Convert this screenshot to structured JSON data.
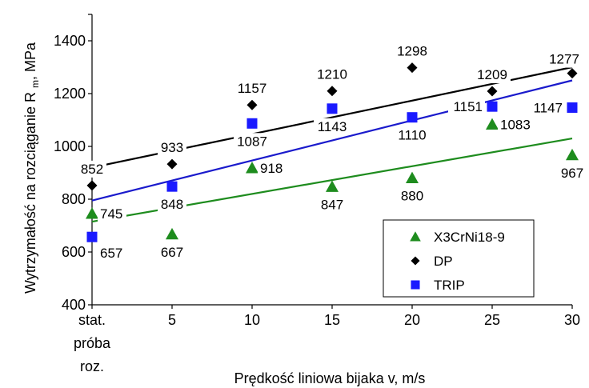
{
  "chart_data": {
    "type": "scatter",
    "xlabel": "Prędkość liniowa bijaka  v,  m/s",
    "ylabel_main": "Wytrzymałość na rozciąganie R",
    "ylabel_sub": "m",
    "ylabel_unit": ", MPa",
    "x_categories": [
      "stat. próba roz.",
      "5",
      "10",
      "15",
      "20",
      "25",
      "30"
    ],
    "x_tick_lines": [
      [
        "stat.",
        "próba",
        "roz."
      ],
      [
        "5"
      ],
      [
        "10"
      ],
      [
        "15"
      ],
      [
        "20"
      ],
      [
        "25"
      ],
      [
        "30"
      ]
    ],
    "ylim": [
      400,
      1500
    ],
    "yticks": [
      400,
      600,
      800,
      1000,
      1200,
      1400
    ],
    "grid": false,
    "legend_position": "bottom-right",
    "series": [
      {
        "name": "X3CrNi18-9",
        "marker": "triangle",
        "color": "#1e8c1e",
        "line_color": "#1e8c1e",
        "values": [
          745,
          667,
          918,
          847,
          880,
          1083,
          967
        ],
        "trend": [
          715,
          1030
        ]
      },
      {
        "name": "DP",
        "marker": "diamond",
        "color": "#000000",
        "line_color": "#000000",
        "values": [
          852,
          933,
          1157,
          1210,
          1298,
          1209,
          1277
        ],
        "trend": [
          920,
          1300
        ]
      },
      {
        "name": "TRIP",
        "marker": "square",
        "color": "#1a1aff",
        "line_color": "#1a1acc",
        "values": [
          657,
          848,
          1087,
          1143,
          1110,
          1151,
          1147
        ],
        "trend": [
          795,
          1250
        ]
      }
    ],
    "data_labels": [
      {
        "text": "852",
        "series": 1,
        "i": 0,
        "pos": "above"
      },
      {
        "text": "933",
        "series": 1,
        "i": 1,
        "pos": "above"
      },
      {
        "text": "1157",
        "series": 1,
        "i": 2,
        "pos": "above"
      },
      {
        "text": "1210",
        "series": 1,
        "i": 3,
        "pos": "above"
      },
      {
        "text": "1298",
        "series": 1,
        "i": 4,
        "pos": "above"
      },
      {
        "text": "1209",
        "series": 1,
        "i": 5,
        "pos": "above"
      },
      {
        "text": "1277",
        "series": 1,
        "i": 6,
        "pos": "aboveleft"
      },
      {
        "text": "745",
        "series": 0,
        "i": 0,
        "pos": "right"
      },
      {
        "text": "657",
        "series": 2,
        "i": 0,
        "pos": "belowright"
      },
      {
        "text": "848",
        "series": 2,
        "i": 1,
        "pos": "below"
      },
      {
        "text": "667",
        "series": 0,
        "i": 1,
        "pos": "below"
      },
      {
        "text": "1087",
        "series": 2,
        "i": 2,
        "pos": "below"
      },
      {
        "text": "918",
        "series": 0,
        "i": 2,
        "pos": "right"
      },
      {
        "text": "1143",
        "series": 2,
        "i": 3,
        "pos": "below"
      },
      {
        "text": "847",
        "series": 0,
        "i": 3,
        "pos": "below"
      },
      {
        "text": "1110",
        "series": 2,
        "i": 4,
        "pos": "below"
      },
      {
        "text": "880",
        "series": 0,
        "i": 4,
        "pos": "below"
      },
      {
        "text": "1151",
        "series": 2,
        "i": 5,
        "pos": "left"
      },
      {
        "text": "1083",
        "series": 0,
        "i": 5,
        "pos": "right"
      },
      {
        "text": "1147",
        "series": 2,
        "i": 6,
        "pos": "left"
      },
      {
        "text": "967",
        "series": 0,
        "i": 6,
        "pos": "below"
      }
    ]
  }
}
